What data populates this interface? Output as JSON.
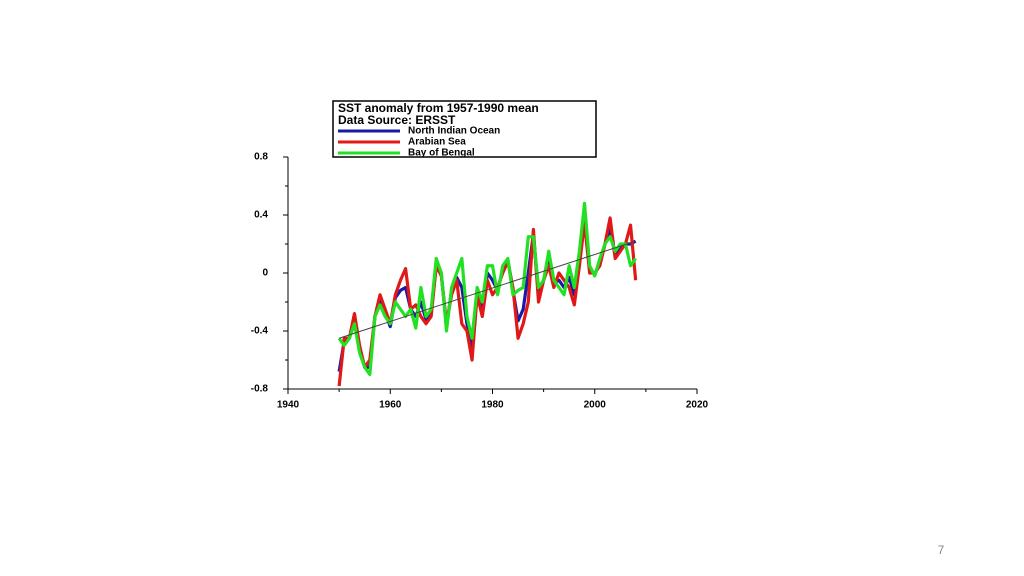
{
  "chart_data": {
    "type": "line",
    "title": "SST anomaly from 1957-1990 mean",
    "subtitle": "Data Source: ERSST",
    "x": [
      1950,
      1951,
      1952,
      1953,
      1954,
      1955,
      1956,
      1957,
      1958,
      1959,
      1960,
      1961,
      1962,
      1963,
      1964,
      1965,
      1966,
      1967,
      1968,
      1969,
      1970,
      1971,
      1972,
      1973,
      1974,
      1975,
      1976,
      1977,
      1978,
      1979,
      1980,
      1981,
      1982,
      1983,
      1984,
      1985,
      1986,
      1987,
      1988,
      1989,
      1990,
      1991,
      1992,
      1993,
      1994,
      1995,
      1996,
      1997,
      1998,
      1999,
      2000,
      2001,
      2002,
      2003,
      2004,
      2005,
      2006,
      2007,
      2008
    ],
    "series": [
      {
        "name": "North Indian Ocean",
        "color": "#1a1aa8",
        "values": [
          -0.68,
          -0.47,
          -0.45,
          -0.32,
          -0.52,
          -0.65,
          -0.65,
          -0.3,
          -0.2,
          -0.27,
          -0.37,
          -0.17,
          -0.12,
          -0.1,
          -0.25,
          -0.3,
          -0.2,
          -0.32,
          -0.27,
          0.05,
          -0.01,
          -0.37,
          -0.12,
          -0.03,
          -0.1,
          -0.35,
          -0.5,
          -0.12,
          -0.25,
          0.0,
          -0.05,
          -0.12,
          0.02,
          0.09,
          -0.12,
          -0.33,
          -0.25,
          0.0,
          0.27,
          -0.15,
          -0.05,
          0.08,
          -0.07,
          -0.05,
          -0.1,
          -0.03,
          -0.15,
          0.1,
          0.4,
          0.02,
          -0.01,
          0.07,
          0.2,
          0.3,
          0.12,
          0.17,
          0.2,
          0.2,
          0.22
        ]
      },
      {
        "name": "Arabian Sea",
        "color": "#e01818",
        "values": [
          -0.78,
          -0.45,
          -0.45,
          -0.28,
          -0.5,
          -0.65,
          -0.6,
          -0.3,
          -0.15,
          -0.25,
          -0.35,
          -0.15,
          -0.05,
          0.03,
          -0.25,
          -0.22,
          -0.3,
          -0.35,
          -0.3,
          0.05,
          -0.02,
          -0.35,
          -0.15,
          -0.05,
          -0.35,
          -0.4,
          -0.6,
          -0.15,
          -0.3,
          -0.05,
          -0.15,
          -0.1,
          0.0,
          0.08,
          -0.1,
          -0.45,
          -0.35,
          -0.2,
          0.3,
          -0.2,
          -0.05,
          0.05,
          -0.1,
          0.0,
          -0.05,
          -0.1,
          -0.22,
          0.05,
          0.35,
          0.0,
          0.0,
          0.05,
          0.2,
          0.38,
          0.1,
          0.15,
          0.2,
          0.33,
          -0.05
        ]
      },
      {
        "name": "Bay of Bengal",
        "color": "#22e022",
        "values": [
          -0.45,
          -0.5,
          -0.45,
          -0.35,
          -0.55,
          -0.65,
          -0.7,
          -0.3,
          -0.22,
          -0.3,
          -0.35,
          -0.2,
          -0.25,
          -0.3,
          -0.25,
          -0.38,
          -0.1,
          -0.3,
          -0.25,
          0.1,
          0.0,
          -0.4,
          -0.1,
          0.0,
          0.1,
          -0.3,
          -0.45,
          -0.1,
          -0.2,
          0.05,
          0.05,
          -0.15,
          0.05,
          0.1,
          -0.15,
          -0.12,
          -0.1,
          0.25,
          0.25,
          -0.1,
          -0.05,
          0.15,
          -0.05,
          -0.1,
          -0.15,
          0.05,
          -0.1,
          0.15,
          0.48,
          0.05,
          -0.02,
          0.1,
          0.2,
          0.25,
          0.15,
          0.2,
          0.2,
          0.05,
          0.1
        ]
      }
    ],
    "trend_line": {
      "x": [
        1950,
        2008
      ],
      "values": [
        -0.45,
        0.22
      ],
      "color": "#444444"
    },
    "xlim": [
      1940,
      2020
    ],
    "xticks": [
      1940,
      1960,
      1980,
      2000,
      2020
    ],
    "ylim": [
      -0.8,
      0.8
    ],
    "yticks": [
      -0.8,
      -0.4,
      0,
      0.4,
      0.8
    ],
    "page_number": "7"
  }
}
